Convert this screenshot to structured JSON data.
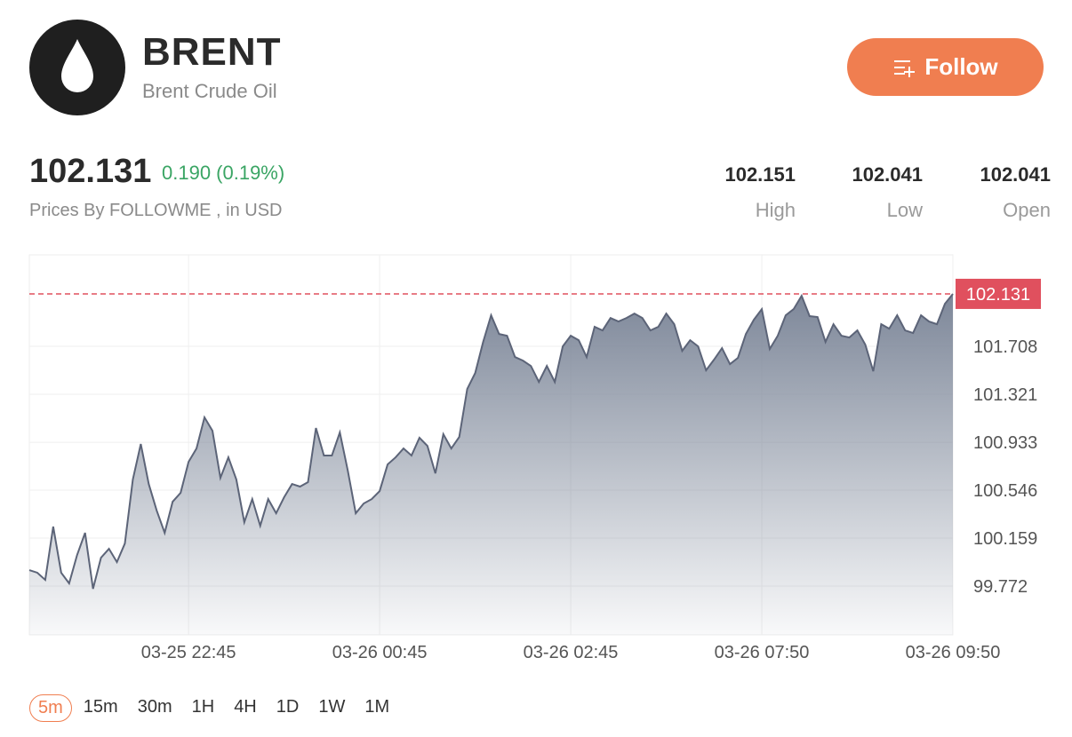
{
  "header": {
    "title": "BRENT",
    "subtitle": "Brent Crude Oil",
    "button": "Follow"
  },
  "quote": {
    "price": "102.131",
    "change": "0.190 (0.19%)",
    "source": "Prices By FOLLOWME , in USD"
  },
  "stats": [
    {
      "value": "102.151",
      "label": "High"
    },
    {
      "value": "102.041",
      "label": "Low"
    },
    {
      "value": "102.041",
      "label": "Open"
    }
  ],
  "chart_data": {
    "type": "area",
    "color": "#5c6478",
    "categories": [
      null,
      null,
      null,
      null,
      null,
      null,
      null,
      null,
      null,
      null,
      null,
      null,
      null,
      null,
      null,
      null,
      null,
      null,
      null,
      null,
      "03-25 22:45",
      null,
      null,
      null,
      null,
      null,
      null,
      null,
      null,
      null,
      null,
      null,
      null,
      null,
      null,
      null,
      null,
      null,
      null,
      null,
      null,
      null,
      null,
      null,
      "03-26 00:45",
      null,
      null,
      null,
      null,
      null,
      null,
      null,
      null,
      null,
      null,
      null,
      null,
      null,
      null,
      null,
      null,
      null,
      null,
      null,
      null,
      null,
      null,
      null,
      "03-26 02:45",
      null,
      null,
      null,
      null,
      null,
      null,
      null,
      null,
      null,
      null,
      null,
      null,
      null,
      null,
      null,
      null,
      null,
      null,
      null,
      null,
      null,
      null,
      null,
      "03-26 07:50",
      null,
      null,
      null,
      null,
      null,
      null,
      null,
      null,
      null,
      null,
      null,
      null,
      null,
      null,
      null,
      null,
      null,
      null,
      null,
      null,
      null,
      null,
      null,
      "03-26 09:50"
    ],
    "values": [
      99.901,
      99.88,
      99.822,
      100.252,
      99.88,
      99.794,
      100.023,
      100.202,
      99.75,
      100.001,
      100.073,
      99.966,
      100.116,
      100.632,
      100.919,
      100.596,
      100.381,
      100.202,
      100.453,
      100.525,
      100.775,
      100.883,
      101.134,
      101.026,
      100.646,
      100.811,
      100.632,
      100.288,
      100.474,
      100.259,
      100.474,
      100.36,
      100.489,
      100.596,
      100.575,
      100.611,
      101.048,
      100.826,
      100.826,
      101.012,
      100.704,
      100.36,
      100.439,
      100.474,
      100.539,
      100.754,
      100.811,
      100.883,
      100.826,
      100.969,
      100.904,
      100.682,
      100.998,
      100.883,
      100.976,
      101.363,
      101.492,
      101.743,
      101.958,
      101.807,
      101.793,
      101.621,
      101.592,
      101.549,
      101.42,
      101.549,
      101.42,
      101.707,
      101.793,
      101.757,
      101.621,
      101.865,
      101.836,
      101.936,
      101.908,
      101.936,
      101.972,
      101.936,
      101.836,
      101.865,
      101.972,
      101.886,
      101.671,
      101.757,
      101.707,
      101.514,
      101.6,
      101.693,
      101.564,
      101.614,
      101.807,
      101.922,
      102.008,
      101.686,
      101.793,
      101.958,
      102.008,
      102.115,
      101.951,
      101.944,
      101.743,
      101.886,
      101.793,
      101.779,
      101.836,
      101.721,
      101.506,
      101.886,
      101.85,
      101.958,
      101.836,
      101.815,
      101.958,
      101.908,
      101.886,
      102.051,
      102.131
    ],
    "current": 102.131,
    "current_color": "#e0505e",
    "ylim": [
      99.378,
      102.446
    ],
    "yticks": [
      99.772,
      100.159,
      100.546,
      100.933,
      101.321,
      101.708
    ],
    "grid": true
  },
  "timeframes": {
    "options": [
      "5m",
      "15m",
      "30m",
      "1H",
      "4H",
      "1D",
      "1W",
      "1M"
    ],
    "selected": 0
  }
}
